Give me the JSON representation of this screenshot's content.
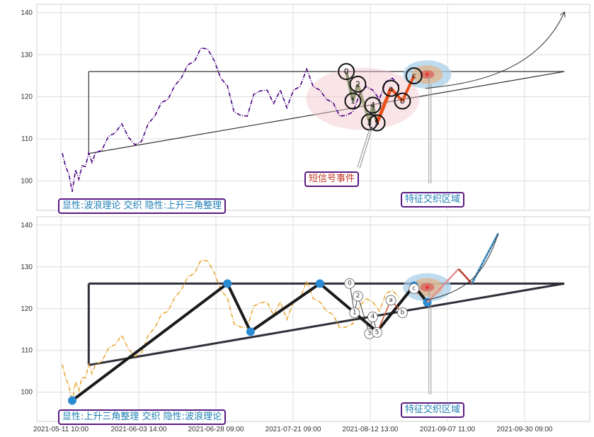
{
  "chart_data": [
    {
      "type": "line",
      "panel": "top",
      "ylim": [
        93,
        142
      ],
      "yticks": [
        100,
        110,
        120,
        130,
        140
      ],
      "grid": true,
      "series": [
        {
          "color": "#4b0082",
          "style": "dash-dot",
          "x": [
            0,
            1,
            2,
            3,
            4,
            5,
            6,
            7,
            8,
            9,
            10,
            12,
            14,
            16,
            18,
            20,
            22,
            24,
            26,
            28,
            30,
            32,
            34,
            36,
            38,
            40,
            42,
            44,
            46,
            48,
            50,
            52,
            54,
            56,
            58,
            60,
            62,
            64,
            66,
            68,
            70,
            72,
            74,
            76,
            78,
            80,
            82,
            84,
            86,
            88,
            90,
            92,
            94,
            96,
            98,
            100,
            102
          ],
          "y": [
            106,
            104,
            101,
            98,
            102,
            101,
            103,
            104,
            106,
            105,
            106,
            108,
            110,
            112,
            113,
            111,
            108,
            110,
            113,
            116,
            118,
            120,
            122,
            125,
            127,
            129,
            131,
            132,
            128,
            125,
            122,
            117,
            115,
            116,
            120,
            122,
            121,
            119,
            121,
            118,
            121,
            123,
            126,
            123,
            121,
            120,
            118,
            116,
            115,
            117,
            120,
            123,
            121,
            120,
            123,
            125,
            122
          ]
        }
      ],
      "pattern_lines": {
        "horizontal_level": 126,
        "ascending_line": [
          [
            8,
            106.5
          ],
          [
            152,
            126
          ]
        ],
        "projection_target": [
          152,
          140
        ]
      },
      "wave_points": [
        {
          "label": "0",
          "x": 86,
          "y": 126
        },
        {
          "label": "1",
          "x": 88,
          "y": 119
        },
        {
          "label": "2",
          "x": 89.5,
          "y": 123
        },
        {
          "label": "3",
          "x": 93,
          "y": 114
        },
        {
          "label": "4",
          "x": 94,
          "y": 118
        },
        {
          "label": "5",
          "x": 95.3,
          "y": 113.8
        },
        {
          "label": "a",
          "x": 99.5,
          "y": 122
        },
        {
          "label": "b",
          "x": 103,
          "y": 119
        },
        {
          "label": "c",
          "x": 106.5,
          "y": 125
        }
      ],
      "annotations": [
        "短信号事件",
        "特征交织区域"
      ],
      "caption": "显性:波浪理论 交织 隐性:上升三角整理"
    },
    {
      "type": "line",
      "panel": "bottom",
      "ylim": [
        93,
        142
      ],
      "yticks": [
        100,
        110,
        120,
        130,
        140
      ],
      "grid": true,
      "xtick_labels": [
        "2021-05-11 10:00",
        "2021-06-03 14:00",
        "2021-06-28 09:00",
        "2021-07-21 09:00",
        "2021-08-12 13:00",
        "2021-09-07 11:00",
        "2021-09-30 09:00"
      ],
      "series": [
        {
          "color": "#e8a735",
          "style": "dash-dot",
          "x": [
            0,
            1,
            2,
            3,
            4,
            5,
            6,
            7,
            8,
            9,
            10,
            12,
            14,
            16,
            18,
            20,
            22,
            24,
            26,
            28,
            30,
            32,
            34,
            36,
            38,
            40,
            42,
            44,
            46,
            48,
            50,
            52,
            54,
            56,
            58,
            60,
            62,
            64,
            66,
            68,
            70,
            72,
            74,
            76,
            78,
            80,
            82,
            84,
            86,
            88,
            90,
            92,
            94,
            96,
            98,
            100,
            102
          ],
          "y": [
            106,
            104,
            101,
            98,
            102,
            101,
            103,
            104,
            106,
            105,
            106,
            108,
            110,
            112,
            113,
            111,
            108,
            110,
            113,
            116,
            118,
            120,
            122,
            125,
            127,
            129,
            131,
            132,
            128,
            125,
            122,
            117,
            115,
            116,
            120,
            122,
            121,
            119,
            121,
            118,
            121,
            123,
            126,
            123,
            121,
            120,
            118,
            116,
            115,
            117,
            120,
            123,
            121,
            120,
            123,
            125,
            122
          ]
        }
      ],
      "zigzag": [
        [
          3,
          98
        ],
        [
          50,
          126
        ],
        [
          57,
          114.5
        ],
        [
          78,
          126
        ],
        [
          95.3,
          114.5
        ],
        [
          106.5,
          125.5
        ],
        [
          110.5,
          121.5
        ]
      ],
      "projection_zigzag": [
        [
          110.5,
          121.5
        ],
        [
          120,
          129.5
        ],
        [
          124,
          126
        ],
        [
          132,
          138
        ]
      ],
      "pattern_lines": {
        "horizontal_level": 126,
        "ascending_line": [
          [
            8,
            106.5
          ],
          [
            152,
            126
          ]
        ]
      },
      "wave_points": [
        {
          "label": "0",
          "x": 87,
          "y": 126
        },
        {
          "label": "1",
          "x": 88.5,
          "y": 119
        },
        {
          "label": "2",
          "x": 89.5,
          "y": 123
        },
        {
          "label": "3",
          "x": 93,
          "y": 114
        },
        {
          "label": "4",
          "x": 94,
          "y": 118
        },
        {
          "label": "5",
          "x": 95.3,
          "y": 114.3
        },
        {
          "label": "a",
          "x": 99.5,
          "y": 122
        },
        {
          "label": "b",
          "x": 103,
          "y": 119
        },
        {
          "label": "c",
          "x": 106.5,
          "y": 124.8
        }
      ],
      "annotations": [
        "特征交织区域"
      ],
      "caption": "显性:上升三角整理 交织 隐性:波浪理论"
    }
  ]
}
